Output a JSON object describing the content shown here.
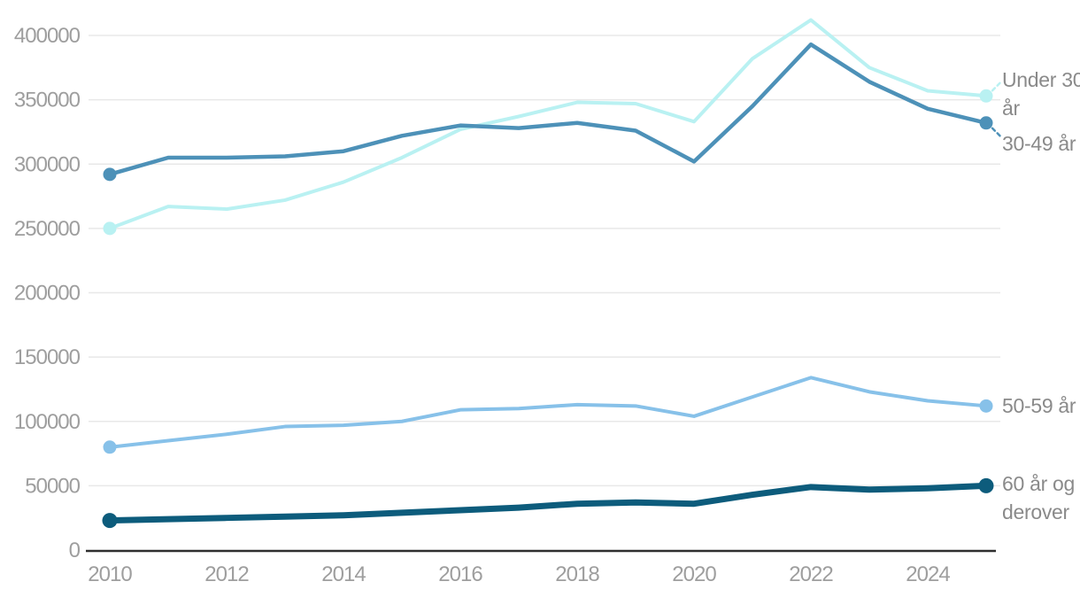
{
  "chart_data": {
    "type": "line",
    "title": "",
    "xlabel": "",
    "ylabel": "",
    "x": [
      2010,
      2011,
      2012,
      2013,
      2014,
      2015,
      2016,
      2017,
      2018,
      2019,
      2020,
      2021,
      2022,
      2023,
      2024,
      2025
    ],
    "x_tick_labels": [
      "2010",
      "2012",
      "2014",
      "2016",
      "2018",
      "2020",
      "2022",
      "2024"
    ],
    "y_ticks": [
      0,
      50000,
      100000,
      150000,
      200000,
      250000,
      300000,
      350000,
      400000
    ],
    "y_tick_labels": [
      "0",
      "50000",
      "100000",
      "150000",
      "200000",
      "250000",
      "300000",
      "350000",
      "400000"
    ],
    "ylim": [
      0,
      420000
    ],
    "grid": "horizontal",
    "legend_position": "right-end-labels",
    "series": [
      {
        "name": "Under 30 år",
        "color": "#b9f1f2",
        "stroke_width": 4,
        "dot_radius": 7.5,
        "leader": "up",
        "values": [
          250000,
          267000,
          265000,
          272000,
          286000,
          305000,
          327000,
          337000,
          348000,
          347000,
          333000,
          382000,
          412000,
          375000,
          357000,
          353000
        ]
      },
      {
        "name": "30-49 år",
        "color": "#4d91b8",
        "stroke_width": 4.5,
        "dot_radius": 7.5,
        "leader": "down",
        "values": [
          292000,
          305000,
          305000,
          306000,
          310000,
          322000,
          330000,
          328000,
          332000,
          326000,
          302000,
          345000,
          393000,
          364000,
          343000,
          332000
        ]
      },
      {
        "name": "50-59 år",
        "color": "#87c1e9",
        "stroke_width": 4,
        "dot_radius": 7.5,
        "leader": "none",
        "values": [
          80000,
          85000,
          90000,
          96000,
          97000,
          100000,
          109000,
          110000,
          113000,
          112000,
          104000,
          119000,
          134000,
          123000,
          116000,
          112000
        ]
      },
      {
        "name": "60 år og derover",
        "color": "#0d5c7c",
        "stroke_width": 7,
        "dot_radius": 8.5,
        "leader": "none",
        "values": [
          23000,
          24000,
          25000,
          26000,
          27000,
          29000,
          31000,
          33000,
          36000,
          37000,
          36000,
          43000,
          49000,
          47000,
          48000,
          50000
        ]
      }
    ]
  },
  "colors": {
    "grid": "#e8e8e8",
    "axis": "#2f2f2f",
    "tick_text": "#9e9e9e",
    "legend_text": "#8a8a8a",
    "background": "#ffffff"
  }
}
